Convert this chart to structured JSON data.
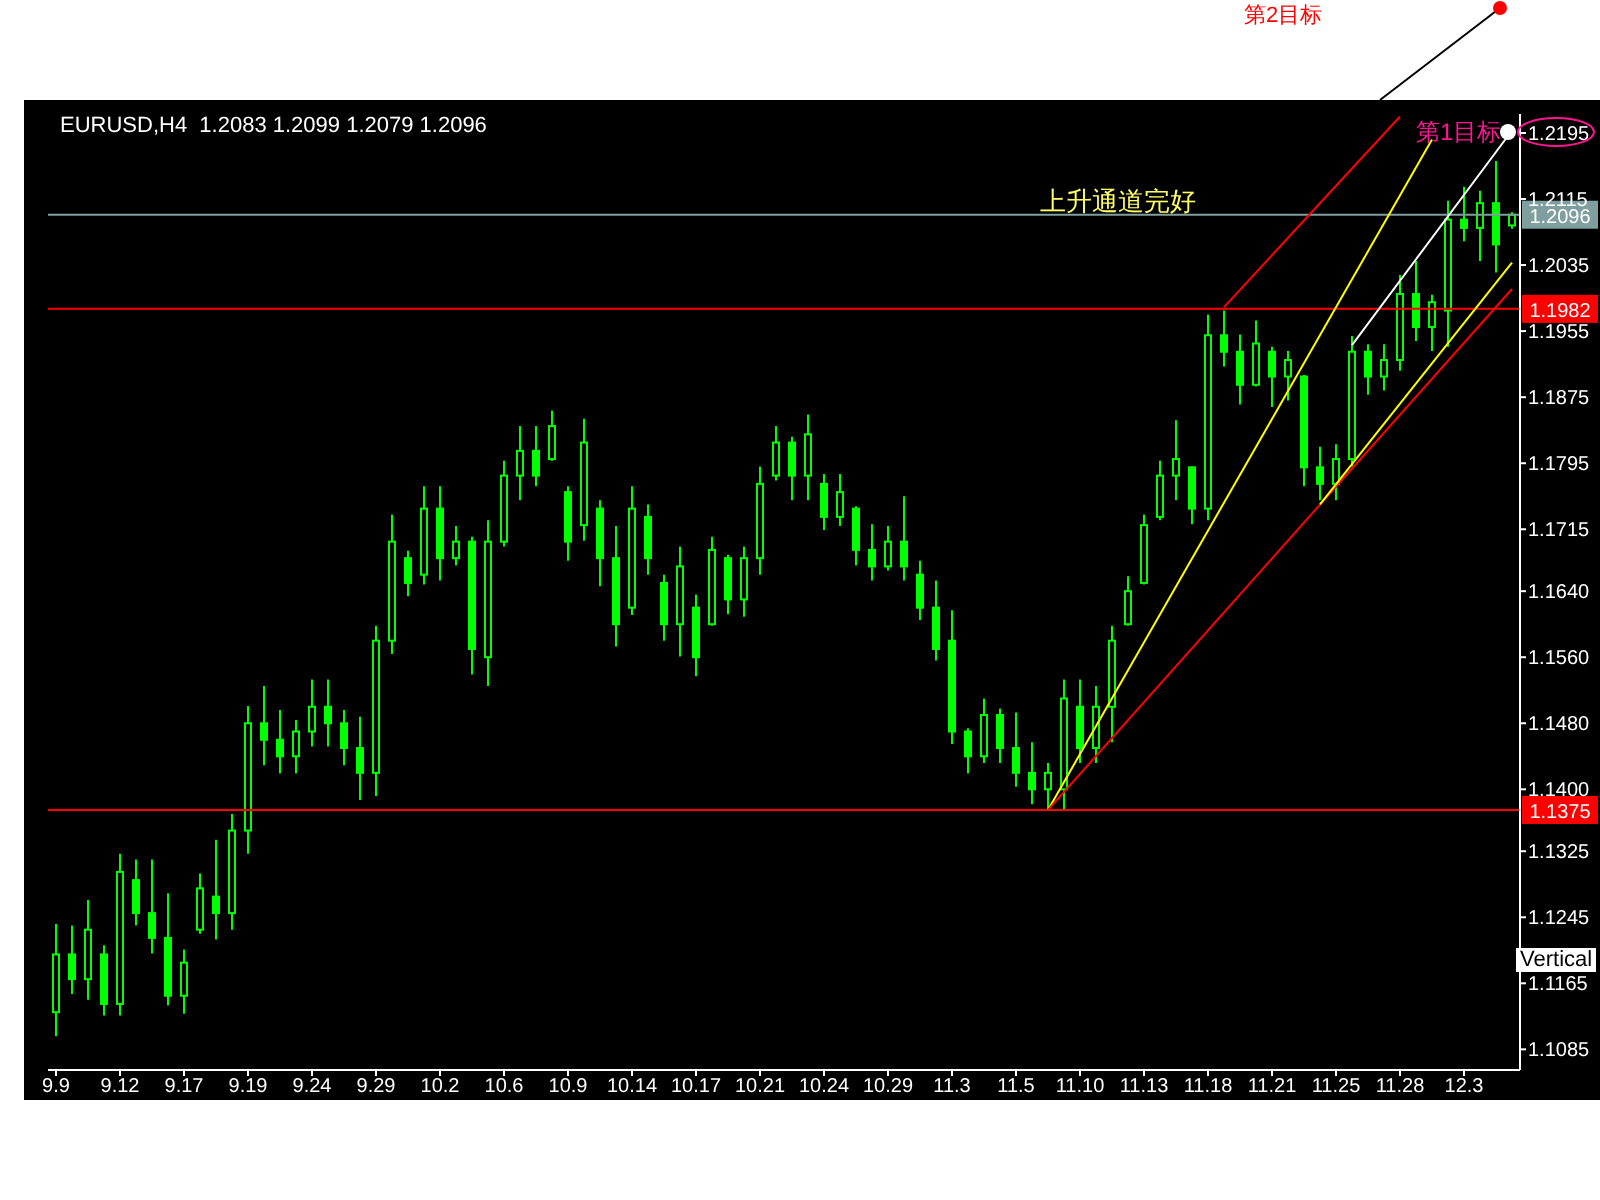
{
  "chart_data": {
    "type": "candlestick",
    "title": "EURUSD,H4  1.2083 1.2099 1.2079 1.2096",
    "color": "#00ff00",
    "categories": [
      "9.9",
      null,
      null,
      null,
      "9.12",
      null,
      null,
      null,
      "9.17",
      null,
      null,
      null,
      "9.19",
      null,
      null,
      null,
      "9.24",
      null,
      null,
      null,
      "9.29",
      null,
      null,
      null,
      "10.2",
      null,
      null,
      null,
      "10.6",
      null,
      null,
      null,
      "10.9",
      null,
      null,
      null,
      "10.14",
      null,
      null,
      null,
      "10.17",
      null,
      null,
      null,
      "10.21",
      null,
      null,
      null,
      "10.24",
      null,
      null,
      null,
      "10.29",
      null,
      null,
      null,
      "11.3",
      null,
      null,
      null,
      "11.5",
      null,
      null,
      null,
      "11.10",
      null,
      null,
      null,
      "11.13",
      null,
      null,
      null,
      "11.18",
      null,
      null,
      null,
      "11.21",
      null,
      null,
      null,
      "11.25",
      null,
      null,
      null,
      "11.28",
      null,
      null,
      null,
      "12.3",
      null,
      null,
      null
    ],
    "ohlc": [
      [
        1.113,
        1.1237,
        1.1101,
        1.12
      ],
      [
        1.12,
        1.1235,
        1.1152,
        1.117
      ],
      [
        1.117,
        1.1266,
        1.1145,
        1.123
      ],
      [
        1.12,
        1.1211,
        1.1126,
        1.114
      ],
      [
        1.114,
        1.1322,
        1.1126,
        1.13
      ],
      [
        1.129,
        1.1315,
        1.1235,
        1.125
      ],
      [
        1.125,
        1.1315,
        1.1201,
        1.122
      ],
      [
        1.122,
        1.1274,
        1.1138,
        1.115
      ],
      [
        1.115,
        1.1206,
        1.1128,
        1.119
      ],
      [
        1.123,
        1.1298,
        1.1225,
        1.128
      ],
      [
        1.127,
        1.1339,
        1.1218,
        1.125
      ],
      [
        1.125,
        1.137,
        1.123,
        1.135
      ],
      [
        1.135,
        1.1501,
        1.1322,
        1.148
      ],
      [
        1.148,
        1.1525,
        1.1429,
        1.146
      ],
      [
        1.146,
        1.1496,
        1.1419,
        1.144
      ],
      [
        1.144,
        1.1484,
        1.1419,
        1.147
      ],
      [
        1.147,
        1.1533,
        1.1452,
        1.15
      ],
      [
        1.15,
        1.1533,
        1.1452,
        1.148
      ],
      [
        1.148,
        1.1496,
        1.1429,
        1.145
      ],
      [
        1.145,
        1.1488,
        1.1387,
        1.142
      ],
      [
        1.142,
        1.1598,
        1.1392,
        1.158
      ],
      [
        1.158,
        1.1733,
        1.1564,
        1.17
      ],
      [
        1.168,
        1.1689,
        1.1634,
        1.165
      ],
      [
        1.166,
        1.1767,
        1.1648,
        1.174
      ],
      [
        1.174,
        1.1767,
        1.1653,
        1.168
      ],
      [
        1.168,
        1.1719,
        1.1671,
        1.17
      ],
      [
        1.17,
        1.1706,
        1.1539,
        1.157
      ],
      [
        1.156,
        1.1726,
        1.1525,
        1.17
      ],
      [
        1.17,
        1.1798,
        1.1694,
        1.178
      ],
      [
        1.178,
        1.184,
        1.175,
        1.181
      ],
      [
        1.181,
        1.184,
        1.1767,
        1.178
      ],
      [
        1.18,
        1.1859,
        1.1798,
        1.184
      ],
      [
        1.176,
        1.1767,
        1.1677,
        1.17
      ],
      [
        1.172,
        1.1849,
        1.1701,
        1.182
      ],
      [
        1.174,
        1.175,
        1.1646,
        1.168
      ],
      [
        1.168,
        1.1719,
        1.1573,
        1.16
      ],
      [
        1.162,
        1.1767,
        1.1611,
        1.174
      ],
      [
        1.173,
        1.1745,
        1.166,
        1.168
      ],
      [
        1.165,
        1.166,
        1.158,
        1.16
      ],
      [
        1.16,
        1.1694,
        1.1561,
        1.167
      ],
      [
        1.162,
        1.1636,
        1.1537,
        1.156
      ],
      [
        1.16,
        1.1706,
        1.1598,
        1.169
      ],
      [
        1.168,
        1.1684,
        1.1612,
        1.163
      ],
      [
        1.163,
        1.1694,
        1.1609,
        1.168
      ],
      [
        1.168,
        1.1791,
        1.166,
        1.177
      ],
      [
        1.178,
        1.184,
        1.1774,
        1.182
      ],
      [
        1.182,
        1.1827,
        1.175,
        1.178
      ],
      [
        1.178,
        1.1854,
        1.175,
        1.183
      ],
      [
        1.177,
        1.1782,
        1.1714,
        1.173
      ],
      [
        1.173,
        1.1782,
        1.1719,
        1.176
      ],
      [
        1.174,
        1.1743,
        1.1671,
        1.169
      ],
      [
        1.169,
        1.1721,
        1.1653,
        1.167
      ],
      [
        1.167,
        1.1719,
        1.1665,
        1.17
      ],
      [
        1.17,
        1.1755,
        1.1653,
        1.167
      ],
      [
        1.166,
        1.1677,
        1.1605,
        1.162
      ],
      [
        1.162,
        1.1653,
        1.1556,
        1.157
      ],
      [
        1.158,
        1.1617,
        1.1455,
        1.147
      ],
      [
        1.147,
        1.1474,
        1.1419,
        1.144
      ],
      [
        1.144,
        1.151,
        1.1432,
        1.149
      ],
      [
        1.149,
        1.1498,
        1.1432,
        1.145
      ],
      [
        1.145,
        1.1493,
        1.1403,
        1.142
      ],
      [
        1.142,
        1.1457,
        1.1382,
        1.14
      ],
      [
        1.14,
        1.1432,
        1.1375,
        1.142
      ],
      [
        1.14,
        1.1533,
        1.1375,
        1.151
      ],
      [
        1.15,
        1.1533,
        1.1432,
        1.145
      ],
      [
        1.145,
        1.1525,
        1.1432,
        1.15
      ],
      [
        1.15,
        1.1598,
        1.1457,
        1.158
      ],
      [
        1.16,
        1.1658,
        1.1598,
        1.164
      ],
      [
        1.165,
        1.1733,
        1.1648,
        1.172
      ],
      [
        1.173,
        1.1798,
        1.1726,
        1.178
      ],
      [
        1.178,
        1.1847,
        1.175,
        1.18
      ],
      [
        1.179,
        1.1791,
        1.1721,
        1.174
      ],
      [
        1.174,
        1.1975,
        1.1726,
        1.195
      ],
      [
        1.195,
        1.198,
        1.1912,
        1.193
      ],
      [
        1.193,
        1.1951,
        1.1866,
        1.189
      ],
      [
        1.189,
        1.1968,
        1.1888,
        1.194
      ],
      [
        1.193,
        1.1936,
        1.1863,
        1.19
      ],
      [
        1.19,
        1.1931,
        1.1871,
        1.192
      ],
      [
        1.19,
        1.1902,
        1.1767,
        1.179
      ],
      [
        1.179,
        1.1815,
        1.175,
        1.177
      ],
      [
        1.177,
        1.1818,
        1.175,
        1.18
      ],
      [
        1.18,
        1.1949,
        1.1791,
        1.193
      ],
      [
        1.193,
        1.1939,
        1.1878,
        1.19
      ],
      [
        1.19,
        1.1939,
        1.1883,
        1.192
      ],
      [
        1.192,
        1.2023,
        1.1907,
        1.2
      ],
      [
        1.2,
        1.204,
        1.1943,
        1.196
      ],
      [
        1.196,
        1.1999,
        1.1931,
        1.199
      ],
      [
        1.198,
        1.2113,
        1.1936,
        1.209
      ],
      [
        1.209,
        1.213,
        1.2064,
        1.208
      ],
      [
        1.208,
        1.2125,
        1.204,
        1.211
      ],
      [
        1.211,
        1.2161,
        1.2026,
        1.206
      ],
      [
        1.2083,
        1.2099,
        1.2079,
        1.2096
      ]
    ],
    "series": [
      {
        "type": "line",
        "color": "#ffff00",
        "values": [
          null,
          null,
          null,
          null,
          null,
          null,
          null,
          null,
          null,
          null,
          null,
          null,
          null,
          null,
          null,
          null,
          null,
          null,
          null,
          null,
          null,
          null,
          null,
          null,
          null,
          null,
          null,
          null,
          null,
          null,
          null,
          null,
          null,
          null,
          null,
          null,
          null,
          null,
          null,
          null,
          null,
          null,
          null,
          null,
          null,
          null,
          null,
          null,
          null,
          null,
          null,
          null,
          null,
          null,
          null,
          null,
          null,
          null,
          null,
          null,
          null,
          null,
          1.1375,
          null,
          null,
          null,
          null,
          null,
          null,
          null,
          null,
          null,
          null,
          null,
          null,
          null,
          null,
          null,
          null,
          null,
          null,
          null,
          null,
          null,
          null,
          null,
          1.2187,
          null,
          null,
          null,
          null,
          null
        ]
      },
      {
        "type": "line",
        "color": "#ff0000",
        "values": [
          null,
          null,
          null,
          null,
          null,
          null,
          null,
          null,
          null,
          null,
          null,
          null,
          null,
          null,
          null,
          null,
          null,
          null,
          null,
          null,
          null,
          null,
          null,
          null,
          null,
          null,
          null,
          null,
          null,
          null,
          null,
          null,
          null,
          null,
          null,
          null,
          null,
          null,
          null,
          null,
          null,
          null,
          null,
          null,
          null,
          null,
          null,
          null,
          null,
          null,
          null,
          null,
          null,
          null,
          null,
          null,
          null,
          null,
          null,
          null,
          null,
          null,
          1.1375,
          null,
          null,
          null,
          null,
          null,
          null,
          null,
          null,
          null,
          null,
          null,
          null,
          null,
          null,
          null,
          null,
          null,
          null,
          null,
          null,
          null,
          null,
          null,
          null,
          null,
          null,
          null,
          null,
          1.2006
        ]
      },
      {
        "type": "line",
        "color": "#ff0000",
        "values": [
          null,
          null,
          null,
          null,
          null,
          null,
          null,
          null,
          null,
          null,
          null,
          null,
          null,
          null,
          null,
          null,
          null,
          null,
          null,
          null,
          null,
          null,
          null,
          null,
          null,
          null,
          null,
          null,
          null,
          null,
          null,
          null,
          null,
          null,
          null,
          null,
          null,
          null,
          null,
          null,
          null,
          null,
          null,
          null,
          null,
          null,
          null,
          null,
          null,
          null,
          null,
          null,
          null,
          null,
          null,
          null,
          null,
          null,
          null,
          null,
          null,
          null,
          null,
          null,
          null,
          null,
          null,
          null,
          null,
          null,
          null,
          null,
          null,
          1.1984,
          null,
          null,
          null,
          null,
          null,
          null,
          null,
          null,
          null,
          null,
          1.2215,
          null,
          null,
          null,
          null,
          null,
          null,
          null
        ]
      },
      {
        "type": "line",
        "color": "#ffffff",
        "values": [
          null,
          null,
          null,
          null,
          null,
          null,
          null,
          null,
          null,
          null,
          null,
          null,
          null,
          null,
          null,
          null,
          null,
          null,
          null,
          null,
          null,
          null,
          null,
          null,
          null,
          null,
          null,
          null,
          null,
          null,
          null,
          null,
          null,
          null,
          null,
          null,
          null,
          null,
          null,
          null,
          null,
          null,
          null,
          null,
          null,
          null,
          null,
          null,
          null,
          null,
          null,
          null,
          null,
          null,
          null,
          null,
          null,
          null,
          null,
          null,
          null,
          null,
          null,
          null,
          null,
          null,
          null,
          null,
          null,
          null,
          null,
          null,
          null,
          null,
          null,
          null,
          null,
          null,
          null,
          null,
          null,
          1.1938,
          null,
          null,
          null,
          null,
          null,
          null,
          null,
          null,
          null,
          1.2198
        ]
      },
      {
        "type": "line",
        "color": "#ffff00",
        "values": [
          null,
          null,
          null,
          null,
          null,
          null,
          null,
          null,
          null,
          null,
          null,
          null,
          null,
          null,
          null,
          null,
          null,
          null,
          null,
          null,
          null,
          null,
          null,
          null,
          null,
          null,
          null,
          null,
          null,
          null,
          null,
          null,
          null,
          null,
          null,
          null,
          null,
          null,
          null,
          null,
          null,
          null,
          null,
          null,
          null,
          null,
          null,
          null,
          null,
          null,
          null,
          null,
          null,
          null,
          null,
          null,
          null,
          null,
          null,
          null,
          null,
          null,
          null,
          null,
          null,
          null,
          null,
          null,
          null,
          null,
          null,
          null,
          null,
          null,
          null,
          null,
          null,
          null,
          null,
          1.1745,
          null,
          null,
          null,
          null,
          null,
          null,
          null,
          null,
          null,
          null,
          null,
          1.2038
        ]
      }
    ],
    "ref_lines": [
      {
        "axis": "y",
        "value": 1.1375,
        "label": "1.1375",
        "color": "#ff0000"
      },
      {
        "axis": "y",
        "value": 1.1982,
        "label": "1.1982",
        "color": "#ff0000"
      },
      {
        "axis": "y",
        "value": 1.2096,
        "label": "1.2096",
        "color": "#7f9f9f"
      }
    ],
    "annotations": [
      "上升通道完好",
      "第1目标",
      "第2目标",
      "Vertical"
    ],
    "ylim": [
      1.106,
      1.2218
    ],
    "yticks": [
      1.2195,
      1.2115,
      1.2035,
      1.1955,
      1.1875,
      1.1795,
      1.1715,
      {
        "value": 1.164,
        "label": "1.1640"
      },
      {
        "value": 1.156,
        "label": "1.1560"
      },
      {
        "value": 1.148,
        "label": "1.1480"
      },
      {
        "value": 1.14,
        "label": "1.1400"
      },
      1.1325,
      1.1245,
      1.1165,
      1.1085
    ]
  }
}
